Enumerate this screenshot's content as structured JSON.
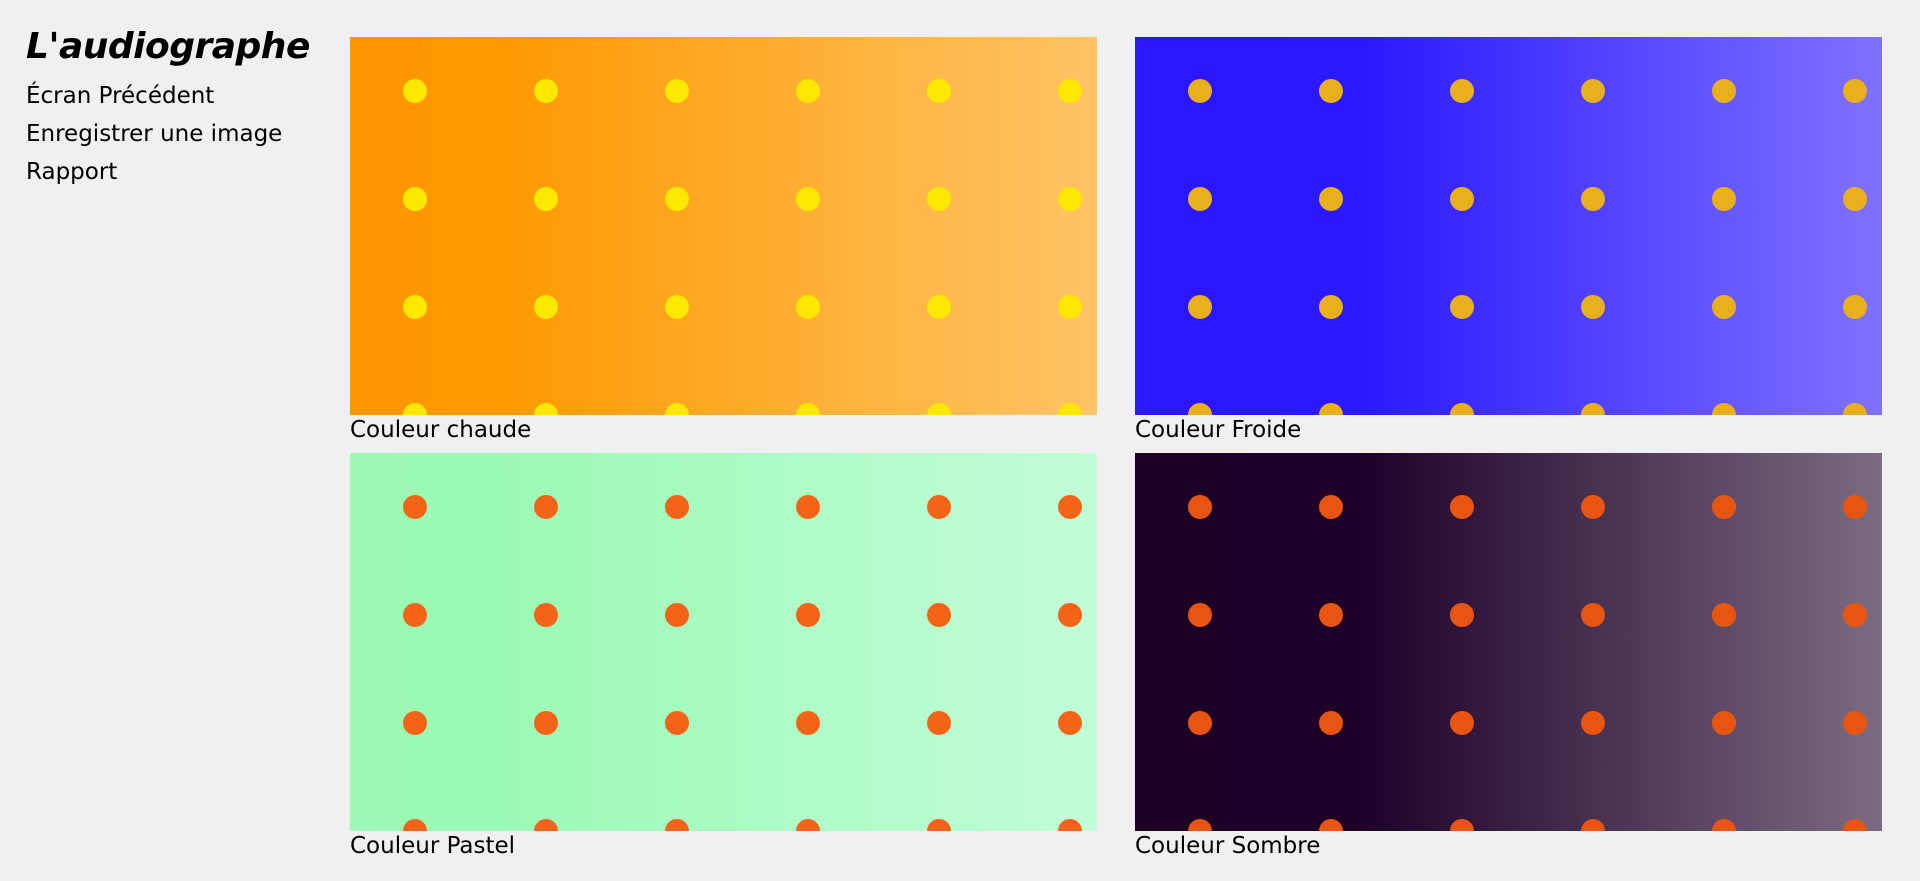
{
  "app": {
    "title": "L'audiographe",
    "nav": [
      "Écran Précédent",
      "Enregistrer une image",
      "Rapport"
    ],
    "panels": [
      {
        "caption": "Couleur chaude"
      },
      {
        "caption": "Couleur Froide"
      },
      {
        "caption": "Couleur Pastel"
      },
      {
        "caption": "Couleur Sombre"
      }
    ]
  }
}
